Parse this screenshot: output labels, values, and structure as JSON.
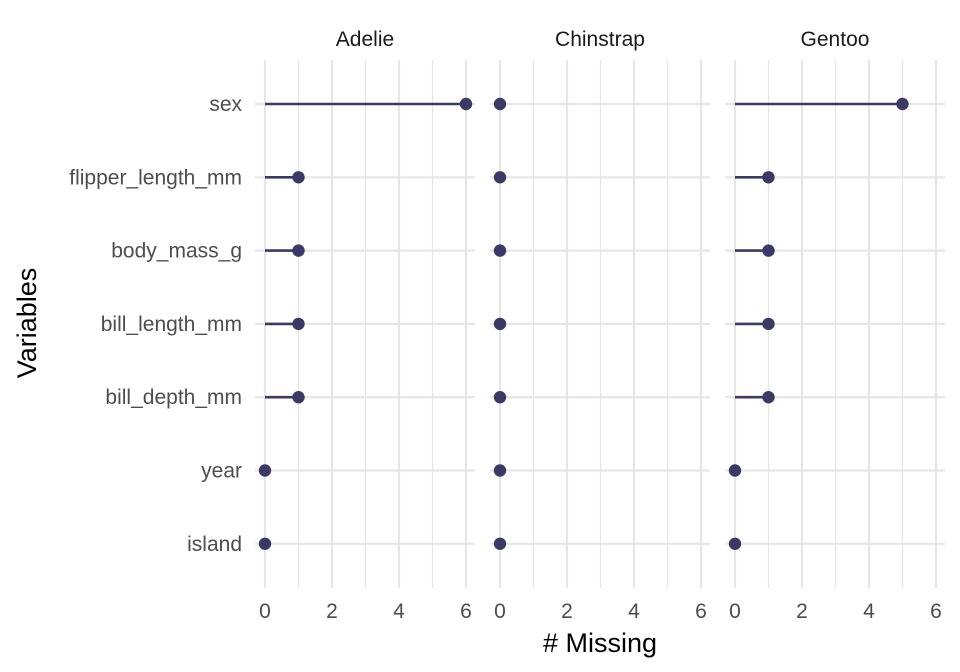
{
  "chart_data": {
    "type": "lollipop",
    "xlabel": "# Missing",
    "ylabel": "Variables",
    "facets": [
      "Adelie",
      "Chinstrap",
      "Gentoo"
    ],
    "variables": [
      "sex",
      "flipper_length_mm",
      "body_mass_g",
      "bill_length_mm",
      "bill_depth_mm",
      "year",
      "island"
    ],
    "x_ticks": [
      0,
      2,
      4,
      6
    ],
    "xlim": [
      0,
      6
    ],
    "values": {
      "Adelie": [
        6,
        1,
        1,
        1,
        1,
        0,
        0
      ],
      "Chinstrap": [
        0,
        0,
        0,
        0,
        0,
        0,
        0
      ],
      "Gentoo": [
        5,
        1,
        1,
        1,
        1,
        0,
        0
      ]
    },
    "grid": true,
    "legend": "none",
    "colors": {
      "point": "#3b3a66",
      "grid": "#e6e6e6"
    }
  }
}
